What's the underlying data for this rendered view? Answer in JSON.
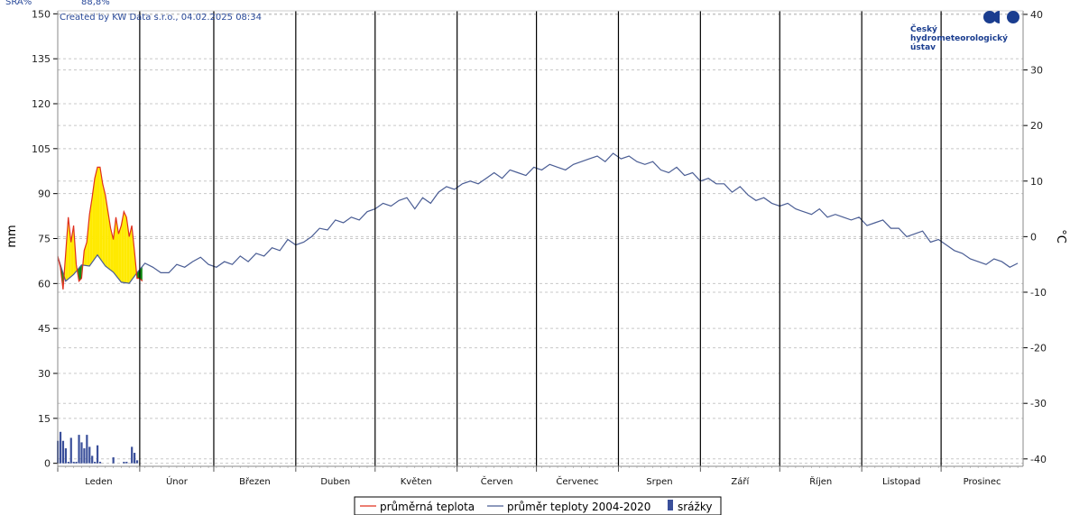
{
  "header": {
    "label": "SRA%",
    "value": "88,8%"
  },
  "credit": "Created by KW Data s.r.o., 04.02.2025 08:34",
  "logo": {
    "line1": "Český",
    "line2": "hydrometeorologický",
    "line3": "ústav",
    "color": "#1a3d8f"
  },
  "chart_data": {
    "type": "line",
    "ylabel_left": "mm",
    "ylabel_right": "°C",
    "ylim_left": [
      -1,
      151
    ],
    "ylim_right": [
      -41.33,
      40.64
    ],
    "yticks_left": [
      "0",
      "15",
      "30",
      "45",
      "60",
      "75",
      "90",
      "105",
      "120",
      "135",
      "150"
    ],
    "yticks_right": [
      "-40",
      "-30",
      "-20",
      "-10",
      "0",
      "10",
      "20",
      "30",
      "40"
    ],
    "categories": [
      "Leden",
      "Únor",
      "Březen",
      "Duben",
      "Květen",
      "Červen",
      "Červenec",
      "Srpen",
      "Září",
      "Říjen",
      "Listopad",
      "Prosinec"
    ],
    "month_lengths": [
      31,
      28,
      31,
      30,
      31,
      30,
      31,
      31,
      30,
      31,
      30,
      31
    ],
    "colors": {
      "actual": "#e0301e",
      "normal": "#4a5d94",
      "precip": "#3a4f9a",
      "warm_fill": "#ffea00",
      "cold_fill": "#128a12",
      "grid": "#c8c8c8",
      "divider": "#000000"
    },
    "series": [
      {
        "name": "průměrná teplota",
        "x": [
          1,
          2,
          3,
          4,
          5,
          6,
          7,
          8,
          9,
          10,
          11,
          12,
          13,
          14,
          15,
          16,
          17,
          18,
          19,
          20,
          21,
          22,
          23,
          24,
          25,
          26,
          27,
          28,
          29,
          30,
          31,
          32,
          33
        ],
        "values": [
          -3.5,
          -5.5,
          -9.5,
          -3.0,
          3.5,
          -1.0,
          2.0,
          -5.0,
          -8.0,
          -7.5,
          -2.5,
          -1.0,
          4.0,
          7.0,
          10.5,
          12.5,
          12.5,
          9.5,
          7.5,
          4.5,
          1.5,
          -0.5,
          3.5,
          0.5,
          2.0,
          4.5,
          3.5,
          0.0,
          2.0,
          -2.5,
          -7.5,
          -7.5,
          -8.0
        ]
      },
      {
        "name": "průměr teploty 2004-2020",
        "x": [
          1,
          4,
          7,
          10,
          13,
          16,
          19,
          22,
          25,
          28,
          31,
          34,
          37,
          40,
          43,
          46,
          49,
          52,
          55,
          58,
          61,
          64,
          67,
          70,
          73,
          76,
          79,
          82,
          85,
          88,
          91,
          94,
          97,
          100,
          103,
          106,
          109,
          112,
          115,
          118,
          121,
          124,
          127,
          130,
          133,
          136,
          139,
          142,
          145,
          148,
          151,
          154,
          157,
          160,
          163,
          166,
          169,
          172,
          175,
          178,
          181,
          184,
          187,
          190,
          193,
          196,
          199,
          202,
          205,
          208,
          211,
          214,
          217,
          220,
          223,
          226,
          229,
          232,
          235,
          238,
          241,
          244,
          247,
          250,
          253,
          256,
          259,
          262,
          265,
          268,
          271,
          274,
          277,
          280,
          283,
          286,
          289,
          292,
          295,
          298,
          301,
          304,
          307,
          310,
          313,
          316,
          319,
          322,
          325,
          328,
          331,
          334,
          337,
          340,
          343,
          346,
          349,
          352,
          355,
          358,
          361,
          364
        ],
        "values": [
          -3.6,
          -8.0,
          -6.8,
          -5.1,
          -5.3,
          -3.3,
          -5.3,
          -6.4,
          -8.2,
          -8.4,
          -6.5,
          -4.8,
          -5.5,
          -6.5,
          -6.5,
          -5.0,
          -5.5,
          -4.5,
          -3.7,
          -5.0,
          -5.5,
          -4.5,
          -5.0,
          -3.5,
          -4.5,
          -3.0,
          -3.5,
          -2.0,
          -2.5,
          -0.5,
          -1.5,
          -1.0,
          0.0,
          1.5,
          1.2,
          3.0,
          2.5,
          3.5,
          3.0,
          4.5,
          5.0,
          6.0,
          5.5,
          6.5,
          7.0,
          5.0,
          7.0,
          6.0,
          8.0,
          9.0,
          8.5,
          9.5,
          10.0,
          9.5,
          10.5,
          11.5,
          10.5,
          12.0,
          11.5,
          11.0,
          12.5,
          12.0,
          13.0,
          12.5,
          12.0,
          13.0,
          13.5,
          14.0,
          14.5,
          13.5,
          15.0,
          14.0,
          14.5,
          13.5,
          13.0,
          13.5,
          12.0,
          11.5,
          12.5,
          11.0,
          11.5,
          10.0,
          10.5,
          9.5,
          9.5,
          8.0,
          9.0,
          7.5,
          6.5,
          7.0,
          6.0,
          5.5,
          6.0,
          5.0,
          4.5,
          4.0,
          5.0,
          3.5,
          4.0,
          3.5,
          3.0,
          3.5,
          2.0,
          2.5,
          3.0,
          1.5,
          1.5,
          0.0,
          0.5,
          1.0,
          -1.0,
          -0.5,
          -1.5,
          -2.5,
          -3.0,
          -4.0,
          -4.5,
          -5.0,
          -4.0,
          -4.5,
          -5.5,
          -4.8
        ]
      }
    ],
    "precip": {
      "name": "srážky",
      "x": [
        1,
        2,
        3,
        4,
        5,
        6,
        7,
        8,
        9,
        10,
        11,
        12,
        13,
        14,
        15,
        16,
        17,
        18,
        19,
        20,
        21,
        22,
        23,
        24,
        25,
        26,
        27,
        28,
        29,
        30,
        31
      ],
      "values": [
        7.5,
        10.5,
        7.5,
        5.0,
        0.5,
        8.5,
        0.5,
        0.5,
        9.5,
        7.0,
        5.0,
        9.5,
        5.5,
        2.5,
        0.5,
        6.0,
        0.5,
        0.0,
        0.0,
        0.0,
        0.0,
        2.0,
        0.0,
        0.0,
        0.0,
        0.5,
        0.5,
        0.0,
        5.5,
        3.5,
        1.0
      ]
    }
  },
  "legend": [
    "průměrná teplota",
    "průměr teploty 2004-2020",
    "srážky"
  ]
}
